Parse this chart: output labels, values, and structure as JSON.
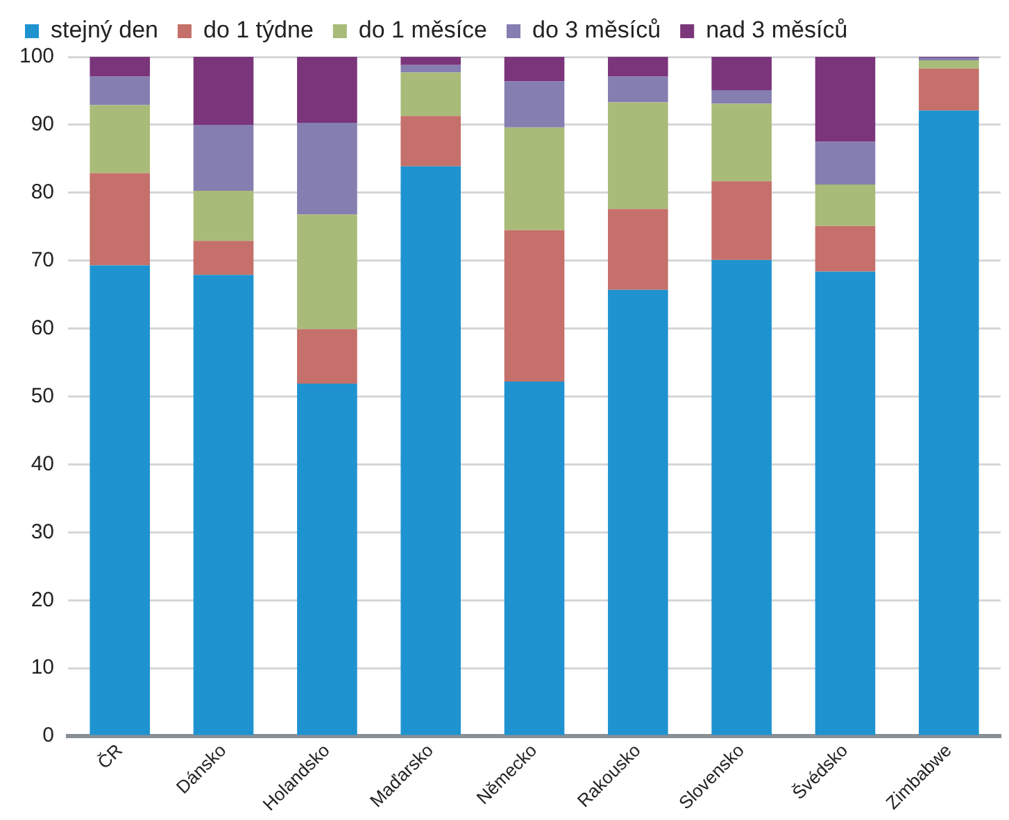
{
  "chart_data": {
    "type": "bar",
    "stacked": true,
    "categories": [
      "ČR",
      "Dánsko",
      "Holandsko",
      "Maďarsko",
      "Německo",
      "Rakousko",
      "Slovensko",
      "Švédsko",
      "Zimbabwe"
    ],
    "series": [
      {
        "name": "stejný den",
        "color": "#1f93d0",
        "values": [
          69.3,
          67.9,
          51.9,
          83.9,
          52.2,
          65.7,
          70.1,
          68.4,
          92.1
        ]
      },
      {
        "name": "do 1 týdne",
        "color": "#c5706a",
        "values": [
          13.6,
          5,
          8,
          7.4,
          22.3,
          11.9,
          11.6,
          6.7,
          6.2
        ]
      },
      {
        "name": "do 1 měsíce",
        "color": "#a9bb78",
        "values": [
          10,
          7.4,
          16.9,
          6.4,
          15.1,
          15.7,
          11.4,
          6.1,
          1.2
        ]
      },
      {
        "name": "do 3 měsíců",
        "color": "#857eb0",
        "values": [
          4.2,
          9.7,
          13.5,
          1.1,
          6.8,
          3.8,
          2,
          6.3,
          0.4
        ]
      },
      {
        "name": "nad 3 měsíců",
        "color": "#7b357a",
        "values": [
          2.9,
          10,
          9.7,
          1.2,
          3.6,
          2.9,
          4.9,
          12.5,
          0.1
        ]
      }
    ],
    "ylim": [
      0,
      100
    ],
    "yticks": [
      0,
      10,
      20,
      30,
      40,
      50,
      60,
      70,
      80,
      90,
      100
    ],
    "grid": "y",
    "legend": "top left"
  }
}
